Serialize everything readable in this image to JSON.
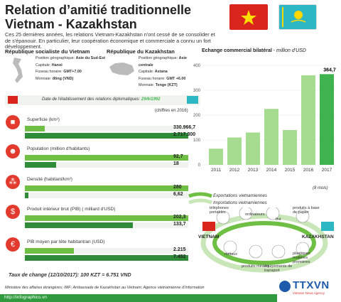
{
  "title": "Relation d’amitié traditionnelle Vietnam - Kazakhstan",
  "intro": "Ces 25 dernières années, les relations Vietnam-Kazakhstan n'ont cessé de se consolider et de s'épanouir. En particulier, leur coopération économique et commerciale a connu un fort développement.",
  "vietnam": {
    "name": "République socialiste du  Vietnam",
    "pos_label": "Position géographique:",
    "pos": "Asie du Sud-Est",
    "capital_label": "Capitale:",
    "capital": "Hanoi",
    "tz_label": "Fuseau horaire:",
    "tz": "GMT+7.00",
    "money_label": "Monnaie:",
    "money": "đông (VND)"
  },
  "kazakhstan": {
    "name": "République du Kazakhstan",
    "pos_label": "Position géographique:",
    "pos": "Asie centrale",
    "capital_label": "Capitale:",
    "capital": "Astana",
    "tz_label": "Fuseau horaire:",
    "tz": "GMT +6.00",
    "money_label": "Monnaie:",
    "money": "Tenge (KZT)"
  },
  "diplomatic": "Date de l'établissement des relations diplomatiques:",
  "diplomatic_date": "29/6/1992",
  "chiffres": "(chiffres en 2016)",
  "rows": [
    {
      "label": "Superficie (km²)",
      "vn": "330.966,7",
      "kz": "2.717.300",
      "vn_frac": 0.12,
      "kz_frac": 1.0
    },
    {
      "label": "Population (million d'habitants)",
      "vn": "92,7",
      "kz": "18",
      "vn_frac": 1.0,
      "kz_frac": 0.19
    },
    {
      "label": "Densité (habitant/km²)",
      "vn": "280",
      "kz": "6,62",
      "vn_frac": 1.0,
      "kz_frac": 0.02
    },
    {
      "label": "Produit intérieur brut (PIB) ( milliard d'USD)",
      "vn": "202,3",
      "kz": "133,7",
      "vn_frac": 1.0,
      "kz_frac": 0.66
    },
    {
      "label": "PIB moyen par tête habitant/an (USD)",
      "vn": "2.215",
      "kz": "7.452",
      "vn_frac": 0.3,
      "kz_frac": 1.0
    }
  ],
  "rate": "Taux de change (12/10/2017): 100 KZT = 6.751 VND",
  "source": "Ministère des affaires étrangères; IMF; Ambassade de Kazakhstan au Vietnam; Agence vietnamienne d'Information",
  "url": "http://infographics.vn",
  "chart_data": {
    "type": "bar",
    "title": "Echange commercial bilatéral - million d'USD",
    "categories": [
      "2011",
      "2012",
      "2013",
      "2014",
      "2015",
      "2016",
      "2017"
    ],
    "values": [
      65,
      110,
      130,
      225,
      140,
      360,
      364.7
    ],
    "value_label": "364,7",
    "note": "(8 mois)",
    "ylim": [
      0,
      400
    ],
    "yticks": [
      "0",
      "100",
      "200",
      "300",
      "400"
    ]
  },
  "trade": {
    "exports": "Exportations vietnamiennes",
    "imports": "Importations vietnamiennes",
    "vn": "VIETNAM",
    "kz": "KAZAKHSTAN",
    "items": [
      "téléphones portables",
      "ordinateurs",
      "thé",
      "produits à base de papier",
      "métaux",
      "produits miniers",
      "équipements de transport",
      "plastiques matières premières"
    ]
  },
  "logo": "TTXVN",
  "logo_sub": "Vietnam News Agency",
  "colors": {
    "green": "#3fb34f",
    "light_green": "#8fd27c",
    "red": "#da251d",
    "kz_blue": "#2db7c4"
  }
}
